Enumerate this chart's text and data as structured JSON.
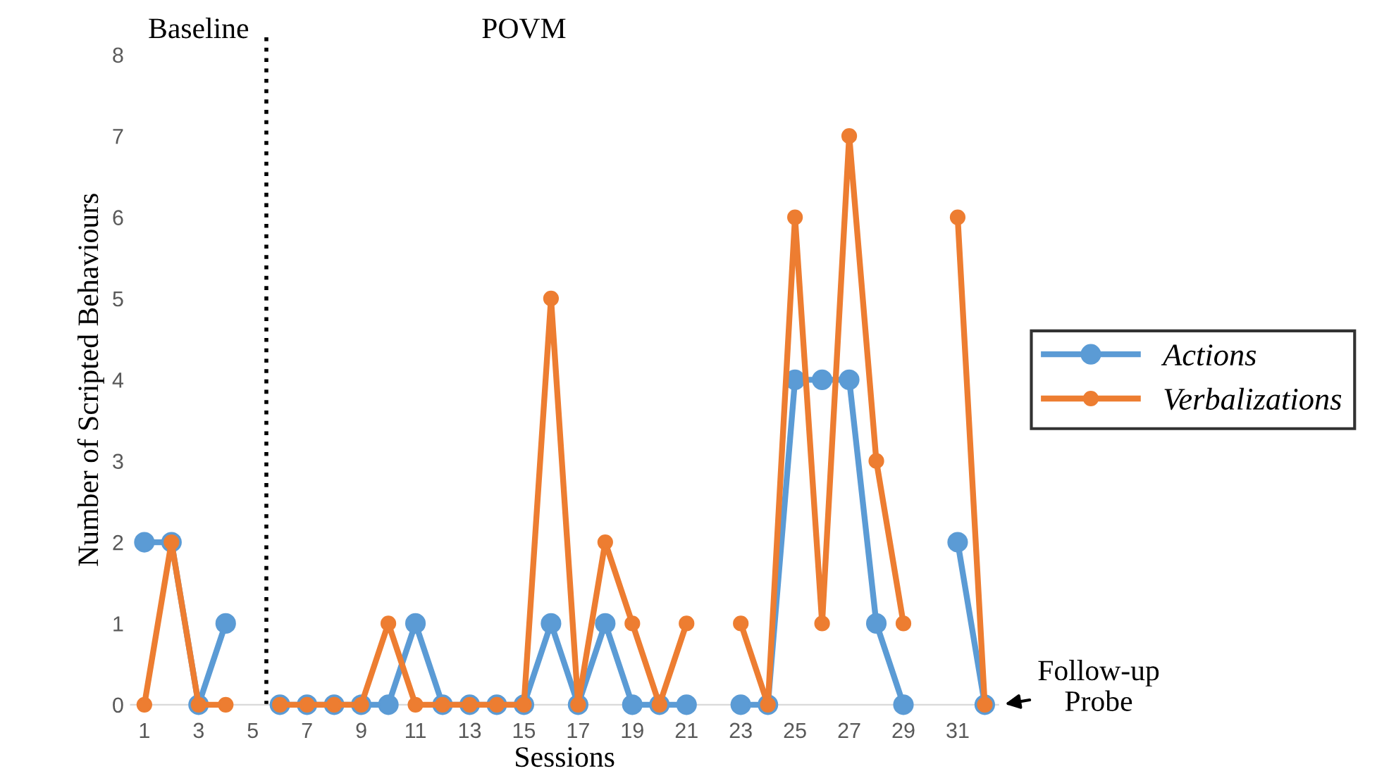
{
  "chart_data": {
    "type": "line",
    "xlabel": "Sessions",
    "ylabel": "Number of Scripted Behaviours",
    "x": [
      1,
      2,
      3,
      4,
      5,
      6,
      7,
      8,
      9,
      10,
      11,
      12,
      13,
      14,
      15,
      16,
      17,
      18,
      19,
      20,
      21,
      22,
      23,
      24,
      25,
      26,
      27,
      28,
      29,
      30,
      31,
      32
    ],
    "xlim": [
      0.5,
      32.5
    ],
    "xticks": [
      1,
      3,
      5,
      7,
      9,
      11,
      13,
      15,
      17,
      19,
      21,
      23,
      25,
      27,
      29,
      31
    ],
    "ylim": [
      0,
      8
    ],
    "yticks": [
      0,
      1,
      2,
      3,
      4,
      5,
      6,
      7,
      8
    ],
    "series": [
      {
        "name": "Actions",
        "color": "#5b9bd5",
        "values": [
          2,
          2,
          0,
          1,
          null,
          0,
          0,
          0,
          0,
          0,
          1,
          0,
          0,
          0,
          0,
          1,
          0,
          1,
          0,
          0,
          0,
          null,
          0,
          0,
          4,
          4,
          4,
          1,
          0,
          null,
          2,
          0
        ]
      },
      {
        "name": "Verbalizations",
        "color": "#ed7d31",
        "values": [
          0,
          2,
          0,
          0,
          null,
          0,
          0,
          0,
          0,
          1,
          0,
          0,
          0,
          0,
          0,
          5,
          0,
          2,
          1,
          0,
          1,
          null,
          1,
          0,
          6,
          1,
          7,
          3,
          1,
          null,
          6,
          0
        ]
      }
    ],
    "marker": "circle",
    "line_style": "solid",
    "grid": false,
    "legend": "right",
    "ref_lines": [
      {
        "axis": "x",
        "value": 5.5,
        "line_style": "dotted",
        "color": "#000000"
      }
    ],
    "annotations": [
      "Baseline",
      "POVM",
      {
        "text": "Follow-up\nProbe",
        "x": 32,
        "y": 0
      }
    ]
  }
}
